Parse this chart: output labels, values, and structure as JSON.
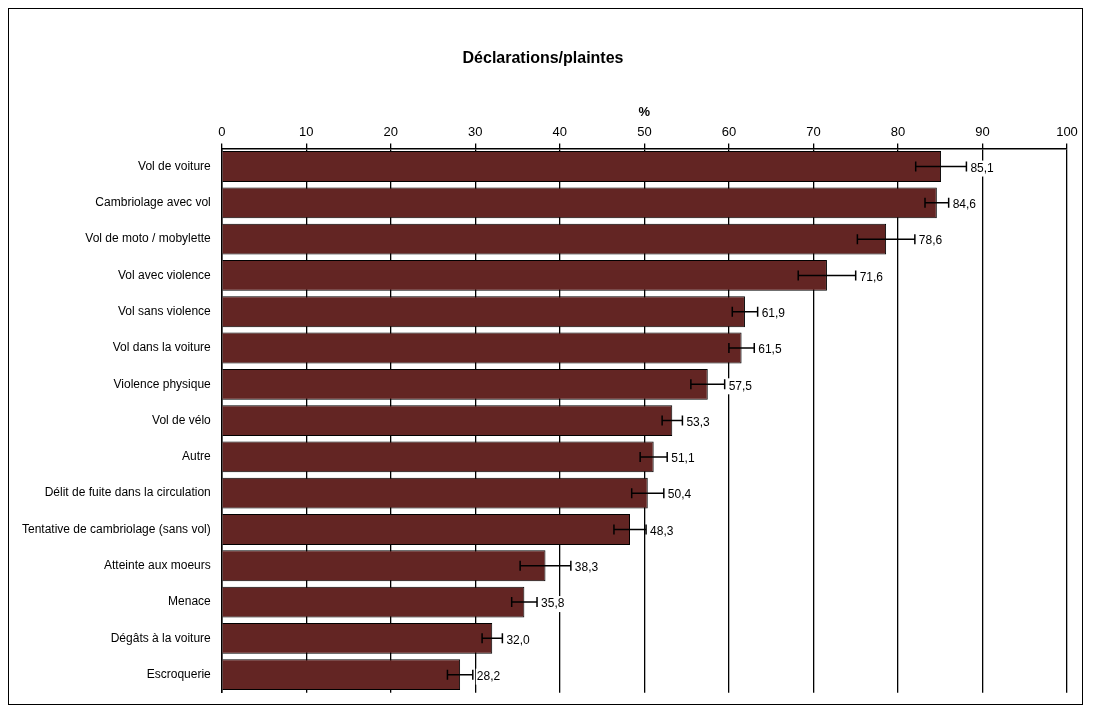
{
  "chart_data": {
    "type": "bar",
    "orientation": "horizontal",
    "title": "Déclarations/plaintes",
    "xlabel": "%",
    "categories": [
      "Vol de voiture",
      "Cambriolage avec vol",
      "Vol de moto / mobylette",
      "Vol avec violence",
      "Vol sans violence",
      "Vol dans la voiture",
      "Violence physique",
      "Vol de vélo",
      "Autre",
      "Délit de fuite dans la circulation",
      "Tentative de cambriolage (sans vol)",
      "Atteinte aux moeurs",
      "Menace",
      "Dégâts à la voiture",
      "Escroquerie"
    ],
    "values": [
      85.1,
      84.6,
      78.6,
      71.6,
      61.9,
      61.5,
      57.5,
      53.3,
      51.1,
      50.4,
      48.3,
      38.3,
      35.8,
      32.0,
      28.2
    ],
    "errors": [
      3,
      1.4,
      3.4,
      3.4,
      1.5,
      1.5,
      2,
      1.2,
      1.6,
      1.9,
      1.9,
      3,
      1.5,
      1.2,
      1.5
    ],
    "value_labels": [
      "85,1",
      "84,6",
      "78,6",
      "71,6",
      "61,9",
      "61,5",
      "57,5",
      "53,3",
      "51,1",
      "50,4",
      "48,3",
      "38,3",
      "35,8",
      "32,0",
      "28,2"
    ],
    "color": "#632523",
    "xlim": [
      0,
      100
    ],
    "xticks": [
      0,
      10,
      20,
      30,
      40,
      50,
      60,
      70,
      80,
      90,
      100
    ],
    "grid": "x",
    "legend": false
  }
}
